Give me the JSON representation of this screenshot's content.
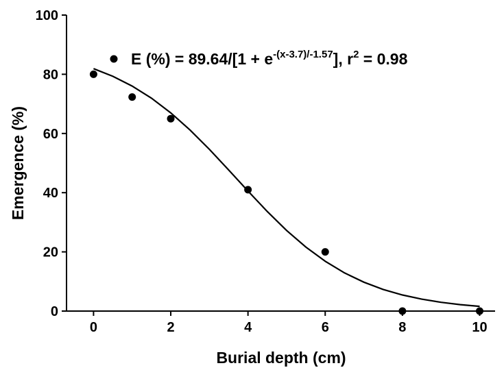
{
  "chart_data": {
    "type": "scatter",
    "x_label": "Burial depth (cm)",
    "y_label": "Emergence (%)",
    "x": [
      0,
      1,
      2,
      4,
      6,
      8,
      10
    ],
    "values": [
      80,
      72.3,
      65,
      41,
      20,
      0,
      0
    ],
    "color": "#000000",
    "legend_text": [
      "E (%) = 89.64/[1 + e",
      "-(x-3.7)/-1.57",
      "], r",
      "2",
      " = 0.98"
    ],
    "fit": {
      "x": [
        0,
        0.5,
        1,
        1.5,
        2,
        2.5,
        3,
        3.5,
        4,
        4.5,
        5,
        5.5,
        6,
        6.5,
        7,
        7.5,
        8,
        8.5,
        9,
        9.5,
        10
      ],
      "values": [
        81.89,
        79.31,
        76.03,
        71.92,
        66.97,
        61.16,
        54.65,
        47.67,
        40.55,
        33.64,
        27.25,
        21.62,
        16.82,
        12.9,
        9.76,
        7.32,
        5.44,
        4.03,
        2.96,
        2.17,
        1.59
      ]
    },
    "xlim": [
      -0.7,
      10.4
    ],
    "ylim": [
      0,
      100
    ],
    "xticks": [
      0,
      2,
      4,
      6,
      8,
      10
    ],
    "yticks": [
      0,
      20,
      40,
      60,
      80,
      100
    ]
  }
}
